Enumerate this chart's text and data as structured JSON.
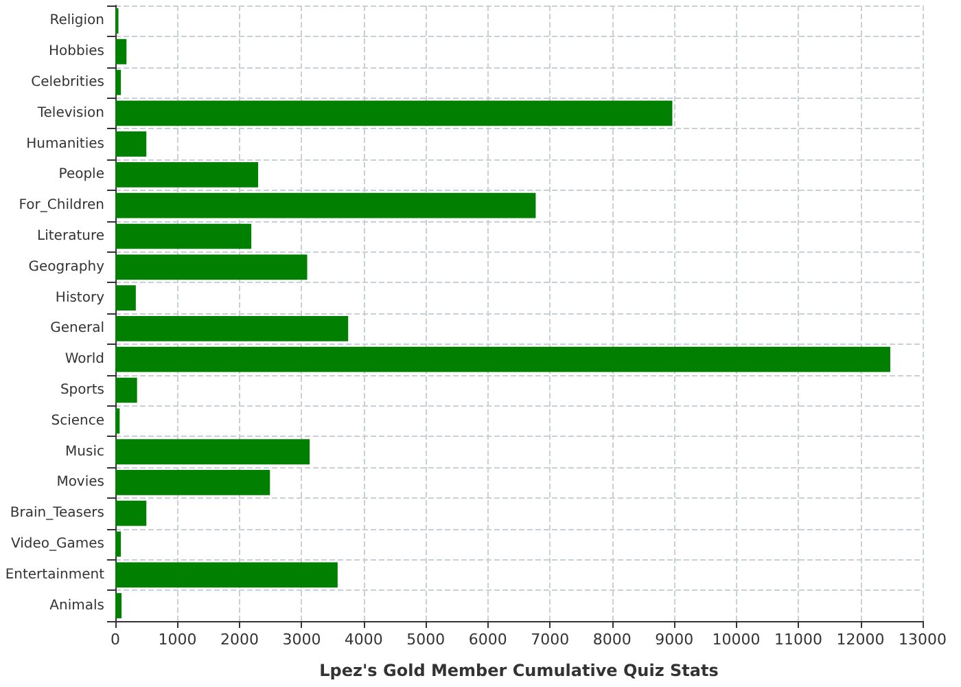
{
  "chart_data": {
    "type": "bar",
    "orientation": "horizontal",
    "xlabel": "Lpez's Gold Member Cumulative Quiz Stats",
    "categories": [
      "Religion",
      "Hobbies",
      "Celebrities",
      "Television",
      "Humanities",
      "People",
      "For_Children",
      "Literature",
      "Geography",
      "History",
      "General",
      "World",
      "Sports",
      "Science",
      "Music",
      "Movies",
      "Brain_Teasers",
      "Video_Games",
      "Entertainment",
      "Animals"
    ],
    "values": [
      50,
      180,
      90,
      8970,
      500,
      2300,
      6770,
      2190,
      3090,
      330,
      3750,
      12480,
      350,
      70,
      3130,
      2490,
      500,
      90,
      3580,
      100
    ],
    "color": "#007f00",
    "xlim": [
      0,
      13000
    ],
    "xticks": [
      0,
      1000,
      2000,
      3000,
      4000,
      5000,
      6000,
      7000,
      8000,
      9000,
      10000,
      11000,
      12000,
      13000
    ],
    "grid": true
  }
}
